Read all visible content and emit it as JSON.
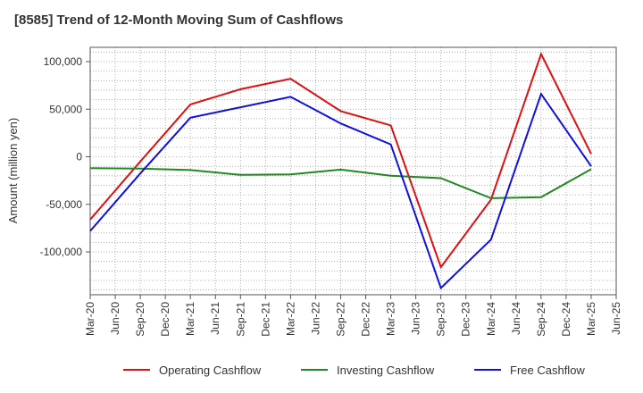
{
  "chart_data": {
    "type": "line",
    "title": "[8585]  Trend of 12-Month Moving Sum of Cashflows",
    "xlabel": "",
    "ylabel": "Amount (million yen)",
    "ylim": [
      -145000,
      115000
    ],
    "yticks": [
      100000,
      50000,
      0,
      -50000,
      -100000
    ],
    "ytick_labels": [
      "100,000",
      "50,000",
      "0",
      "-50,000",
      "-100,000"
    ],
    "categories": [
      "Mar-20",
      "Jun-20",
      "Sep-20",
      "Dec-20",
      "Mar-21",
      "Jun-21",
      "Sep-21",
      "Dec-21",
      "Mar-22",
      "Jun-22",
      "Sep-22",
      "Dec-22",
      "Mar-23",
      "Jun-23",
      "Sep-23",
      "Dec-23",
      "Mar-24",
      "Jun-24",
      "Sep-24",
      "Dec-24",
      "Mar-25",
      "Jun-25"
    ],
    "grid": true,
    "legend_position": "bottom",
    "series": [
      {
        "name": "Operating Cashflow",
        "color": "#dd1111",
        "x": [
          "Mar-20",
          "Sep-20",
          "Mar-21",
          "Sep-21",
          "Mar-22",
          "Sep-22",
          "Mar-23",
          "Sep-23",
          "Mar-24",
          "Sep-24",
          "Mar-25"
        ],
        "values": [
          -66000,
          -5000,
          55000,
          71000,
          82000,
          48000,
          33000,
          -116000,
          -45000,
          108000,
          3000
        ]
      },
      {
        "name": "Investing Cashflow",
        "color": "#228822",
        "x": [
          "Mar-20",
          "Sep-20",
          "Mar-21",
          "Sep-21",
          "Mar-22",
          "Sep-22",
          "Mar-23",
          "Sep-23",
          "Mar-24",
          "Sep-24",
          "Mar-25"
        ],
        "values": [
          -12000,
          -12500,
          -14000,
          -19000,
          -18500,
          -13500,
          -20000,
          -22500,
          -43500,
          -42500,
          -13000
        ]
      },
      {
        "name": "Free Cashflow",
        "color": "#1111dd",
        "x": [
          "Mar-20",
          "Sep-20",
          "Mar-21",
          "Sep-21",
          "Mar-22",
          "Sep-22",
          "Mar-23",
          "Sep-23",
          "Mar-24",
          "Sep-24",
          "Mar-25"
        ],
        "values": [
          -78000,
          -17500,
          41000,
          52000,
          63000,
          35000,
          13000,
          -138000,
          -87000,
          66000,
          -10000
        ]
      }
    ]
  }
}
